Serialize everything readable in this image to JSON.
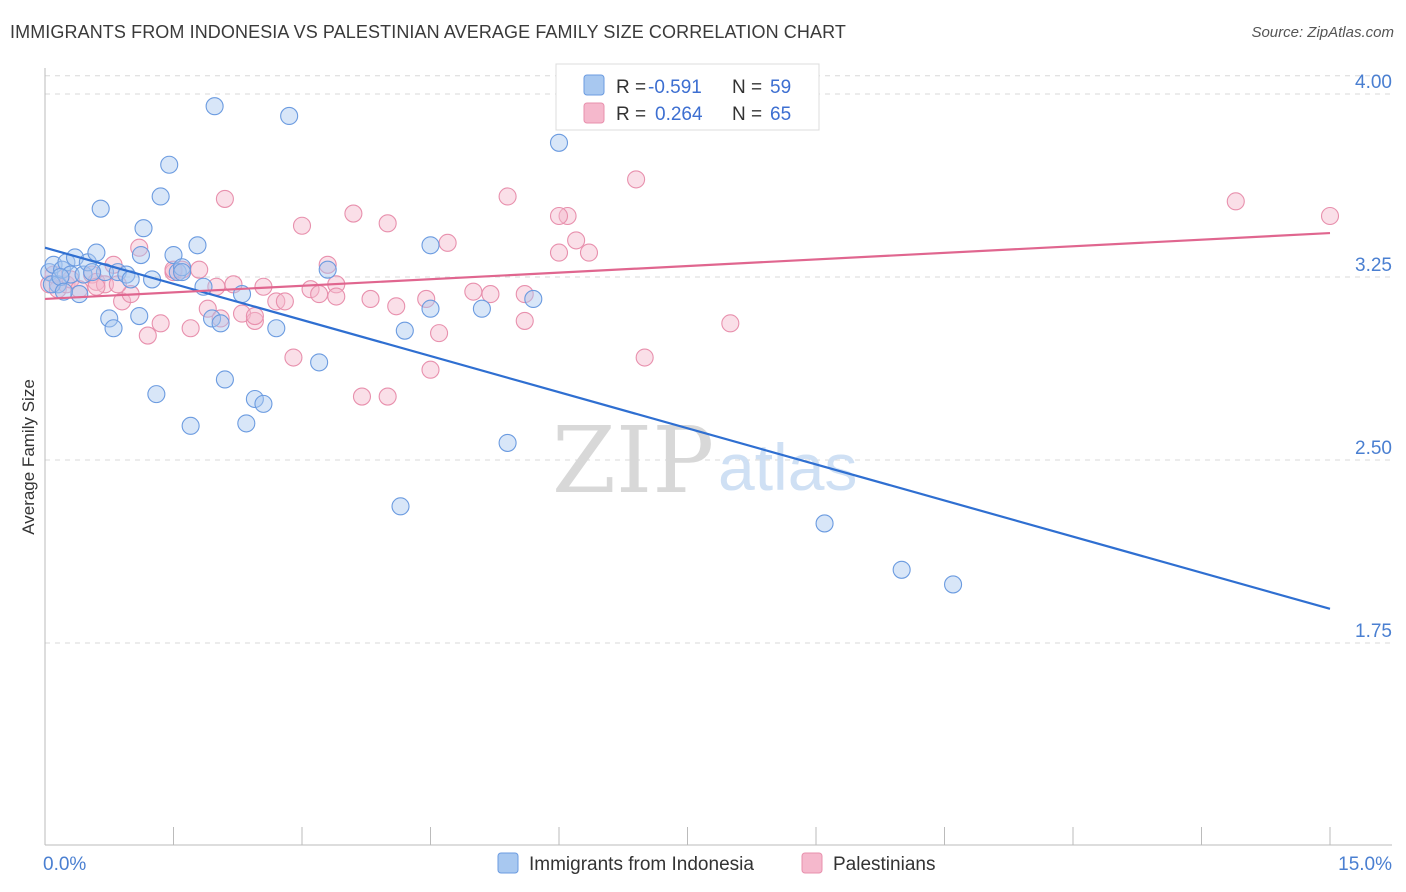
{
  "title": "IMMIGRANTS FROM INDONESIA VS PALESTINIAN AVERAGE FAMILY SIZE CORRELATION CHART",
  "source": "Source: ZipAtlas.com",
  "watermark": {
    "zip": "ZIP",
    "atlas": "atlas"
  },
  "colors": {
    "blue_fill": "#a8c8f0",
    "blue_stroke": "#6b9be0",
    "blue_line": "#2f6fd1",
    "pink_fill": "#f5b8cc",
    "pink_stroke": "#e890ad",
    "pink_line": "#e0668f",
    "grid": "#d8d8d8",
    "tick_text": "#4a7fd1"
  },
  "legend_top": {
    "rows": [
      {
        "r_label": "R =",
        "r_value": "-0.591",
        "n_label": "N =",
        "n_value": "59"
      },
      {
        "r_label": "R =",
        "r_value": "0.264",
        "n_label": "N =",
        "n_value": "65"
      }
    ]
  },
  "legend_bottom": [
    "Immigrants from Indonesia",
    "Palestinians"
  ],
  "chart_data": {
    "type": "scatter",
    "title": "IMMIGRANTS FROM INDONESIA VS PALESTINIAN AVERAGE FAMILY SIZE CORRELATION CHART",
    "xlabel": "",
    "ylabel": "Average Family Size",
    "xlim": [
      0,
      15
    ],
    "ylim": [
      1.0,
      4.2
    ],
    "x_tick_labels": [
      "0.0%",
      "15.0%"
    ],
    "y_ticks": [
      1.75,
      2.5,
      3.25,
      4.0
    ],
    "y_tick_labels": [
      "1.75",
      "2.50",
      "3.25",
      "4.00"
    ],
    "grid": "horizontal dashed",
    "series": [
      {
        "name": "Immigrants from Indonesia",
        "r": -0.591,
        "n": 59,
        "trend": {
          "x": [
            0,
            15
          ],
          "y": [
            3.37,
            1.89
          ]
        },
        "points": [
          [
            0.05,
            3.27
          ],
          [
            0.1,
            3.3
          ],
          [
            0.15,
            3.22
          ],
          [
            0.2,
            3.28
          ],
          [
            0.25,
            3.31
          ],
          [
            0.3,
            3.26
          ],
          [
            0.35,
            3.33
          ],
          [
            0.4,
            3.18
          ],
          [
            0.45,
            3.26
          ],
          [
            0.5,
            3.31
          ],
          [
            0.6,
            3.35
          ],
          [
            0.65,
            3.53
          ],
          [
            0.7,
            3.27
          ],
          [
            0.75,
            3.08
          ],
          [
            0.8,
            3.04
          ],
          [
            0.85,
            3.27
          ],
          [
            0.95,
            3.26
          ],
          [
            1.0,
            3.24
          ],
          [
            1.1,
            3.09
          ],
          [
            1.15,
            3.45
          ],
          [
            1.25,
            3.24
          ],
          [
            1.3,
            2.77
          ],
          [
            1.35,
            3.58
          ],
          [
            1.45,
            3.71
          ],
          [
            1.5,
            3.34
          ],
          [
            1.55,
            3.27
          ],
          [
            1.6,
            3.29
          ],
          [
            1.7,
            2.64
          ],
          [
            1.78,
            3.38
          ],
          [
            1.85,
            3.21
          ],
          [
            1.95,
            3.08
          ],
          [
            1.98,
            3.95
          ],
          [
            2.05,
            3.06
          ],
          [
            2.1,
            2.83
          ],
          [
            2.3,
            3.18
          ],
          [
            2.35,
            2.65
          ],
          [
            2.45,
            2.75
          ],
          [
            2.55,
            2.73
          ],
          [
            2.7,
            3.04
          ],
          [
            2.85,
            3.91
          ],
          [
            3.2,
            2.9
          ],
          [
            3.3,
            3.28
          ],
          [
            4.15,
            2.31
          ],
          [
            4.2,
            3.03
          ],
          [
            4.5,
            3.12
          ],
          [
            4.5,
            3.38
          ],
          [
            5.1,
            3.12
          ],
          [
            5.4,
            2.57
          ],
          [
            5.7,
            3.16
          ],
          [
            6.0,
            3.8
          ],
          [
            9.1,
            2.24
          ],
          [
            10.0,
            2.05
          ],
          [
            10.6,
            1.99
          ],
          [
            0.08,
            3.22
          ],
          [
            0.18,
            3.25
          ],
          [
            0.22,
            3.19
          ],
          [
            1.12,
            3.34
          ],
          [
            1.6,
            3.27
          ],
          [
            0.55,
            3.27
          ]
        ]
      },
      {
        "name": "Palestinians",
        "r": 0.264,
        "n": 65,
        "trend": {
          "x": [
            0,
            15
          ],
          "y": [
            3.16,
            3.43
          ]
        },
        "points": [
          [
            0.05,
            3.22
          ],
          [
            0.1,
            3.26
          ],
          [
            0.15,
            3.2
          ],
          [
            0.25,
            3.22
          ],
          [
            0.3,
            3.24
          ],
          [
            0.4,
            3.2
          ],
          [
            0.55,
            3.26
          ],
          [
            0.6,
            3.23
          ],
          [
            0.7,
            3.22
          ],
          [
            0.8,
            3.3
          ],
          [
            0.9,
            3.15
          ],
          [
            1.0,
            3.18
          ],
          [
            1.1,
            3.37
          ],
          [
            1.2,
            3.01
          ],
          [
            1.35,
            3.06
          ],
          [
            1.5,
            3.27
          ],
          [
            1.6,
            3.28
          ],
          [
            1.7,
            3.04
          ],
          [
            1.9,
            3.12
          ],
          [
            2.0,
            3.21
          ],
          [
            2.1,
            3.57
          ],
          [
            2.2,
            3.22
          ],
          [
            2.3,
            3.1
          ],
          [
            2.45,
            3.07
          ],
          [
            2.55,
            3.21
          ],
          [
            2.7,
            3.15
          ],
          [
            2.8,
            3.15
          ],
          [
            2.9,
            2.92
          ],
          [
            3.0,
            3.46
          ],
          [
            3.1,
            3.2
          ],
          [
            3.3,
            3.3
          ],
          [
            3.4,
            3.22
          ],
          [
            3.6,
            3.51
          ],
          [
            3.7,
            2.76
          ],
          [
            3.8,
            3.16
          ],
          [
            4.0,
            3.47
          ],
          [
            4.1,
            3.13
          ],
          [
            4.5,
            2.87
          ],
          [
            4.6,
            3.02
          ],
          [
            4.7,
            3.39
          ],
          [
            5.0,
            3.19
          ],
          [
            5.2,
            3.18
          ],
          [
            5.4,
            3.58
          ],
          [
            5.6,
            3.07
          ],
          [
            6.0,
            3.35
          ],
          [
            6.1,
            3.5
          ],
          [
            6.2,
            3.4
          ],
          [
            6.35,
            3.35
          ],
          [
            6.9,
            3.65
          ],
          [
            7.0,
            2.92
          ],
          [
            8.0,
            3.06
          ],
          [
            13.9,
            3.56
          ],
          [
            15.0,
            3.5
          ],
          [
            1.5,
            3.28
          ],
          [
            2.45,
            3.09
          ],
          [
            3.4,
            3.17
          ],
          [
            4.0,
            2.76
          ],
          [
            5.6,
            3.18
          ],
          [
            6.0,
            3.5
          ],
          [
            1.8,
            3.28
          ],
          [
            0.6,
            3.21
          ],
          [
            0.85,
            3.22
          ],
          [
            3.2,
            3.18
          ],
          [
            4.45,
            3.16
          ],
          [
            2.05,
            3.08
          ]
        ]
      }
    ]
  }
}
